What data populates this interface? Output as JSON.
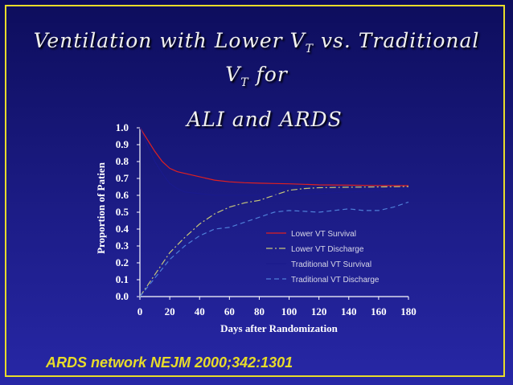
{
  "slide": {
    "title_line1_prefix": "Ventilation with Lower V",
    "title_line1_sub": "T",
    "title_line1_suffix": " vs. Traditional",
    "title_line2_prefix": "V",
    "title_line2_sub": "T",
    "title_line2_suffix": " for",
    "title_line3": "ALI and ARDS",
    "citation": "ARDS network  NEJM 2000;342:1301",
    "colors": {
      "border": "#e8dc2a",
      "citation": "#e8dc2a",
      "background_top": "#0d0d5c",
      "background_bottom": "#2727a6"
    }
  },
  "chart_data": {
    "type": "line",
    "xlabel": "Days after Randomization",
    "ylabel": "Proportion of Patien",
    "xlim": [
      0,
      180
    ],
    "ylim": [
      0,
      1
    ],
    "x_ticks": [
      "0",
      "20",
      "40",
      "60",
      "80",
      "100",
      "120",
      "140",
      "160",
      "180"
    ],
    "y_ticks": [
      "0.0",
      "0.1",
      "0.2",
      "0.3",
      "0.4",
      "0.5",
      "0.6",
      "0.7",
      "0.8",
      "0.9",
      "1.0"
    ],
    "grid": false,
    "legend_position": "lower-right",
    "series": [
      {
        "name": "Lower VT Survival",
        "color": "#e02020",
        "dash": "solid",
        "x": [
          0,
          5,
          10,
          15,
          20,
          25,
          30,
          40,
          50,
          60,
          70,
          80,
          90,
          100,
          110,
          120,
          140,
          160,
          180
        ],
        "y": [
          1.0,
          0.93,
          0.86,
          0.8,
          0.76,
          0.74,
          0.73,
          0.71,
          0.69,
          0.68,
          0.675,
          0.672,
          0.67,
          0.668,
          0.665,
          0.662,
          0.66,
          0.658,
          0.657
        ]
      },
      {
        "name": "Lower VT Discharge",
        "color": "#c8c87a",
        "dash": "dashdot",
        "x": [
          0,
          10,
          20,
          30,
          40,
          50,
          60,
          70,
          80,
          90,
          100,
          110,
          120,
          140,
          160,
          180
        ],
        "y": [
          0.0,
          0.13,
          0.26,
          0.35,
          0.43,
          0.49,
          0.53,
          0.555,
          0.57,
          0.6,
          0.63,
          0.64,
          0.645,
          0.648,
          0.65,
          0.652
        ]
      },
      {
        "name": "Traditional VT Survival",
        "color": "#1a1a8c",
        "dash": "solid",
        "x": [
          0,
          5,
          10,
          15,
          20,
          25,
          30,
          40,
          50,
          60,
          80,
          100,
          120,
          140,
          160,
          180
        ],
        "y": [
          1.0,
          0.9,
          0.8,
          0.73,
          0.67,
          0.64,
          0.62,
          0.61,
          0.6,
          0.6,
          0.6,
          0.6,
          0.61,
          0.62,
          0.63,
          0.64
        ]
      },
      {
        "name": "Traditional VT Discharge",
        "color": "#4f7fd8",
        "dash": "dashed",
        "x": [
          0,
          10,
          20,
          30,
          40,
          50,
          60,
          70,
          80,
          90,
          100,
          110,
          120,
          130,
          140,
          150,
          160,
          170,
          180
        ],
        "y": [
          0.0,
          0.11,
          0.22,
          0.3,
          0.36,
          0.4,
          0.41,
          0.44,
          0.47,
          0.5,
          0.51,
          0.505,
          0.5,
          0.51,
          0.52,
          0.51,
          0.51,
          0.53,
          0.56
        ]
      }
    ]
  }
}
